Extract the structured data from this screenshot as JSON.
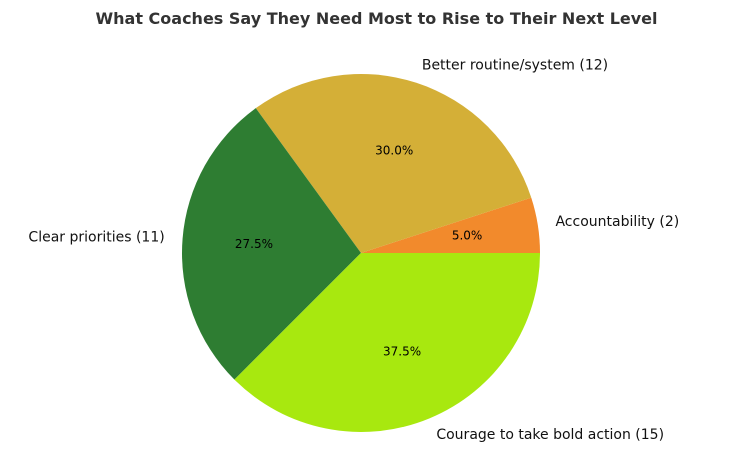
{
  "chart_data": {
    "type": "pie",
    "title": "What Coaches Say They Need Most to Rise to Their Next Level",
    "slices": [
      {
        "label": "Accountability (2)",
        "value": 2,
        "percent_label": "5.0%",
        "color": "#F28A2C"
      },
      {
        "label": "Better routine/system (12)",
        "value": 12,
        "percent_label": "30.0%",
        "color": "#D4AF37"
      },
      {
        "label": "Clear priorities (11)",
        "value": 11,
        "percent_label": "27.5%",
        "color": "#2E7D32"
      },
      {
        "label": "Courage to take bold action (15)",
        "value": 15,
        "percent_label": "37.5%",
        "color": "#A8E80F"
      }
    ],
    "start_angle_deg": 0,
    "direction": "counterclockwise"
  }
}
